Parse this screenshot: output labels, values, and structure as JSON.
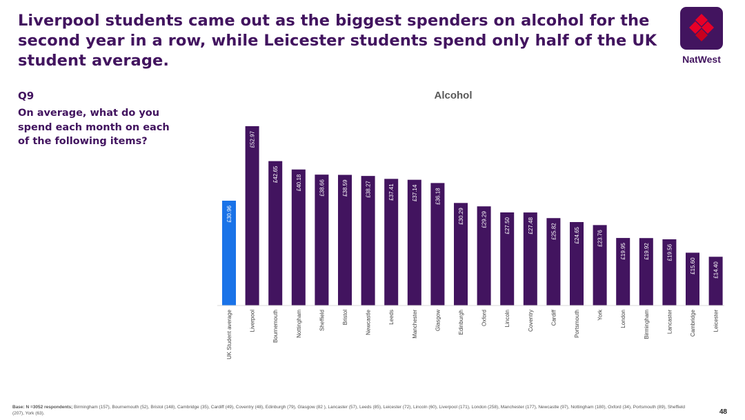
{
  "headline": "Liverpool students came out as the biggest spenders on alcohol for the second year in a row, while Leicester students spend only half of the UK student average.",
  "brand": {
    "name": "NatWest",
    "logo_color": "#42145f"
  },
  "question": {
    "id": "Q9",
    "text": "On average, what do you spend each month on each of the following items?"
  },
  "colors": {
    "highlight": "#1a73e8",
    "bar": "#42145f",
    "title": "#595959"
  },
  "chart_data": {
    "type": "bar",
    "title": "Alcohol",
    "categories": [
      "UK Student average",
      "Liverpool",
      "Bournemouth",
      "Nottingham",
      "Sheffield",
      "Bristol",
      "Newcastle",
      "Leeds",
      "Manchester",
      "Glasgow",
      "Edinburgh",
      "Oxford",
      "Lincoln",
      "Coventry",
      "Cardiff",
      "Portsmouth",
      "York",
      "London",
      "Birmingham",
      "Lancaster",
      "Cambridge",
      "Leicester"
    ],
    "values": [
      30.96,
      52.97,
      42.65,
      40.18,
      38.66,
      38.59,
      38.27,
      37.41,
      37.14,
      36.18,
      30.29,
      29.29,
      27.5,
      27.48,
      25.82,
      24.65,
      23.76,
      19.95,
      19.92,
      19.56,
      15.6,
      14.4
    ],
    "data_labels": [
      "£30.96",
      "£52.97",
      "£42.65",
      "£40.18",
      "£38.66",
      "£38.59",
      "£38.27",
      "£37.41",
      "£37.14",
      "£36.18",
      "£30.29",
      "£29.29",
      "£27.50",
      "£27.48",
      "£25.82",
      "£24.65",
      "£23.76",
      "£19.95",
      "£19.92",
      "£19.56",
      "£15.60",
      "£14.40"
    ],
    "highlight_index": 0,
    "xlabel": "",
    "ylabel": "",
    "ylim": [
      0,
      55
    ],
    "grid": false,
    "legend": "none"
  },
  "footnote": {
    "base_label": "Base: N =3052 respondents;",
    "details": " Birmingham (157),  Bournemouth (52), Bristol (148), Cambridge (35), Cardiff (49), Coventry (48),  Edinburgh (79), Glasgow (82 ), Lancaster (57), Leeds (85), Leicester (72), Lincoln (60), Liverpool (171), London (258), Manchester (177), Newcastle (97), Nottingham (180), Oxford (34), Portsmouth (89), Sheffield (207), York (63)."
  },
  "page_number": "48"
}
